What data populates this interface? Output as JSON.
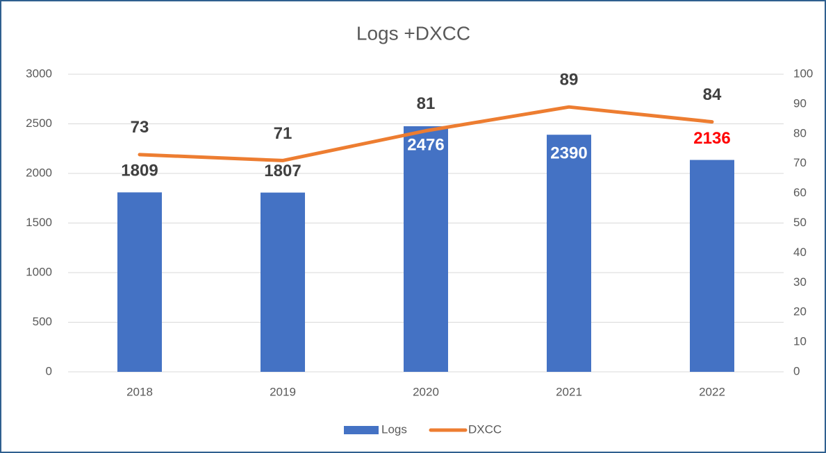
{
  "chart_data": {
    "type": "combo",
    "title": "Logs +DXCC",
    "categories": [
      "2018",
      "2019",
      "2020",
      "2021",
      "2022"
    ],
    "series": [
      {
        "name": "Logs",
        "type": "bar",
        "color": "#4472c4",
        "values": [
          1809,
          1807,
          2476,
          2390,
          2136
        ],
        "label_colors": [
          "#404040",
          "#404040",
          "#ffffff",
          "#ffffff",
          "#ff0000"
        ]
      },
      {
        "name": "DXCC",
        "type": "line",
        "axis": "y2",
        "color": "#ed7d31",
        "values": [
          73,
          71,
          81,
          89,
          84
        ],
        "label_colors": [
          "#404040",
          "#404040",
          "#404040",
          "#404040",
          "#404040"
        ]
      }
    ],
    "ylim": [
      0,
      3000
    ],
    "yticks": [
      0,
      500,
      1000,
      1500,
      2000,
      2500,
      3000
    ],
    "y2lim": [
      0,
      100
    ],
    "y2ticks": [
      0,
      10,
      20,
      30,
      40,
      50,
      60,
      70,
      80,
      90,
      100
    ],
    "grid": true,
    "legend": "bottom"
  }
}
